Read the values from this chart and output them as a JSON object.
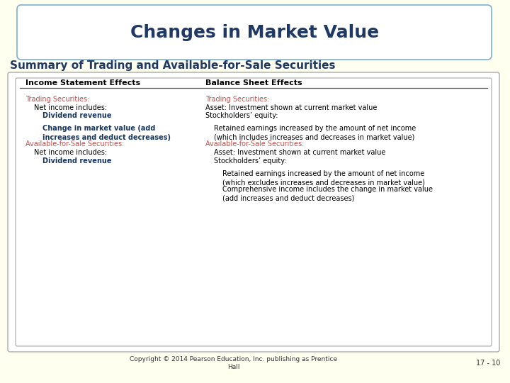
{
  "title": "Changes in Market Value",
  "subtitle": "Summary of Trading and Available-for-Sale Securities",
  "bg_color": "#FFFFF0",
  "title_color": "#1F3864",
  "subtitle_color": "#1F3864",
  "title_box_color": "#FFFFFF",
  "title_box_edge": "#7BAFD4",
  "table_bg": "#FFFFFF",
  "table_border": "#888888",
  "header_line_color": "#555555",
  "col1_header": "Income Statement Effects",
  "col2_header": "Balance Sheet Effects",
  "header_color": "#000000",
  "copyright": "Copyright © 2014 Pearson Education, Inc. publishing as Prentice\nHall",
  "page_num": "17 - 10",
  "red_color": "#C0504D",
  "blue_color": "#17375E",
  "black_color": "#000000",
  "title_fontsize": 18,
  "subtitle_fontsize": 11,
  "header_fontsize": 8,
  "body_fontsize": 7,
  "rows": [
    {
      "col1": {
        "text": "Trading Securities:",
        "indent": 0,
        "bold": false,
        "color": "#C0504D"
      },
      "col2": {
        "text": "Trading Securities:",
        "indent": 0,
        "bold": false,
        "color": "#C0504D"
      }
    },
    {
      "col1": {
        "text": "Net income includes:",
        "indent": 1,
        "bold": false,
        "color": "#000000"
      },
      "col2": {
        "text": "Asset: Investment shown at current market value",
        "indent": 0,
        "bold": false,
        "color": "#000000"
      }
    },
    {
      "col1": {
        "text": "Dividend revenue",
        "indent": 2,
        "bold": true,
        "color": "#17375E"
      },
      "col2": {
        "text": "Stockholders’ equity:",
        "indent": 0,
        "bold": false,
        "color": "#000000"
      }
    },
    {
      "col1": {
        "text": "Change in market value (add\nincreases and deduct decreases)",
        "indent": 2,
        "bold": true,
        "color": "#17375E"
      },
      "col2": {
        "text": "Retained earnings increased by the amount of net income\n(which includes increases and decreases in market value)",
        "indent": 1,
        "bold": false,
        "color": "#000000"
      }
    },
    {
      "col1": {
        "text": "Available-for-Sale Securities:",
        "indent": 0,
        "bold": false,
        "color": "#C0504D"
      },
      "col2": {
        "text": "Available-for-Sale Securities:",
        "indent": 0,
        "bold": false,
        "color": "#C0504D"
      }
    },
    {
      "col1": {
        "text": "Net income includes:",
        "indent": 1,
        "bold": false,
        "color": "#000000"
      },
      "col2": {
        "text": "Asset: Investment shown at current market value",
        "indent": 1,
        "bold": false,
        "color": "#000000"
      }
    },
    {
      "col1": {
        "text": "Dividend revenue",
        "indent": 2,
        "bold": true,
        "color": "#17375E"
      },
      "col2": {
        "text": "Stockholders’ equity:",
        "indent": 1,
        "bold": false,
        "color": "#000000"
      }
    },
    {
      "col1": {
        "text": "",
        "indent": 0,
        "bold": false,
        "color": "#000000"
      },
      "col2": {
        "text": "Retained earnings increased by the amount of net income\n(which excludes increases and decreases in market value)",
        "indent": 2,
        "bold": false,
        "color": "#000000"
      }
    },
    {
      "col1": {
        "text": "",
        "indent": 0,
        "bold": false,
        "color": "#000000"
      },
      "col2": {
        "text": "Comprehensive income includes the change in market value\n(add increases and deduct decreases)",
        "indent": 2,
        "bold": false,
        "color": "#000000"
      }
    }
  ]
}
